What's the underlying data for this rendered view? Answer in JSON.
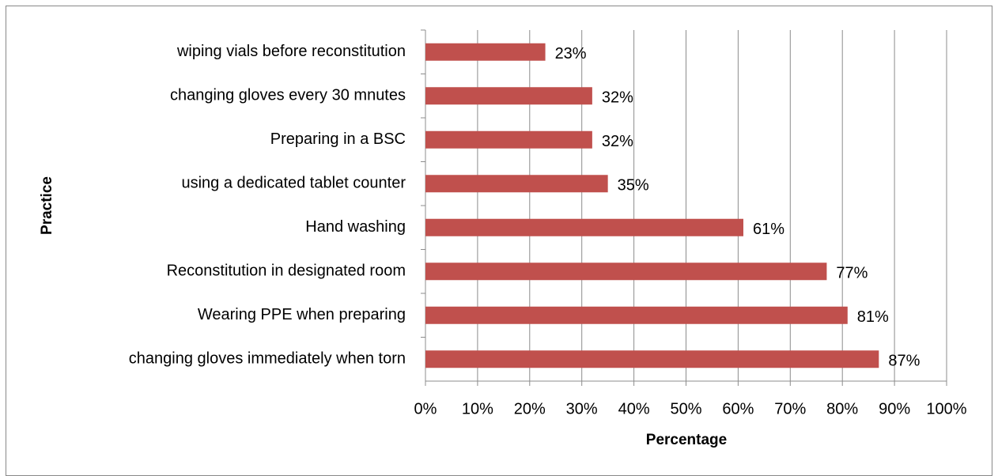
{
  "chart_data": {
    "type": "bar",
    "orientation": "horizontal",
    "x_label": "Percentage",
    "y_label": "Practice",
    "categories": [
      "wiping vials before reconstitution",
      "changing gloves every 30 mnutes",
      "Preparing in a BSC",
      "using a dedicated tablet counter",
      "Hand washing",
      "Reconstitution in designated room",
      "Wearing PPE when preparing",
      "changing gloves immediately when torn"
    ],
    "values": [
      23,
      32,
      32,
      35,
      61,
      77,
      81,
      87
    ],
    "value_labels": [
      "23%",
      "32%",
      "32%",
      "35%",
      "61%",
      "77%",
      "81%",
      "87%"
    ],
    "color": "#c0504d",
    "xlim": [
      0,
      100
    ],
    "xticks": [
      {
        "value": 0,
        "label": "0%"
      },
      {
        "value": 10,
        "label": "10%"
      },
      {
        "value": 20,
        "label": "20%"
      },
      {
        "value": 30,
        "label": "30%"
      },
      {
        "value": 40,
        "label": "40%"
      },
      {
        "value": 50,
        "label": "50%"
      },
      {
        "value": 60,
        "label": "60%"
      },
      {
        "value": 70,
        "label": "70%"
      },
      {
        "value": 80,
        "label": "80%"
      },
      {
        "value": 90,
        "label": "90%"
      },
      {
        "value": 100,
        "label": "100%"
      }
    ],
    "grid": true
  }
}
